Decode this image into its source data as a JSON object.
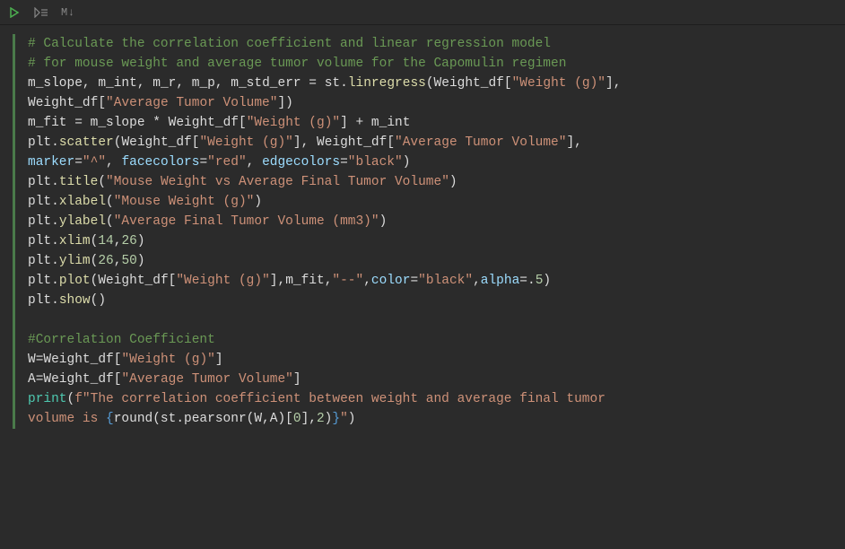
{
  "toolbar": {
    "run_icon": "run",
    "runall_icon": "run-all",
    "markdown_label": "M↓"
  },
  "code": {
    "lines": [
      [
        {
          "c": "tok-comment",
          "t": "# Calculate the correlation coefficient and linear regression model"
        }
      ],
      [
        {
          "c": "tok-comment",
          "t": "# for mouse weight and average tumor volume for the Capomulin regimen"
        }
      ],
      [
        {
          "c": "tok-ident",
          "t": "m_slope"
        },
        {
          "c": "tok-op",
          "t": ", "
        },
        {
          "c": "tok-ident",
          "t": "m_int"
        },
        {
          "c": "tok-op",
          "t": ", "
        },
        {
          "c": "tok-ident",
          "t": "m_r"
        },
        {
          "c": "tok-op",
          "t": ", "
        },
        {
          "c": "tok-ident",
          "t": "m_p"
        },
        {
          "c": "tok-op",
          "t": ", "
        },
        {
          "c": "tok-ident",
          "t": "m_std_err"
        },
        {
          "c": "tok-op",
          "t": " = "
        },
        {
          "c": "tok-ident",
          "t": "st"
        },
        {
          "c": "tok-op",
          "t": "."
        },
        {
          "c": "tok-func",
          "t": "linregress"
        },
        {
          "c": "tok-op",
          "t": "("
        },
        {
          "c": "tok-ident",
          "t": "Weight_df"
        },
        {
          "c": "tok-op",
          "t": "["
        },
        {
          "c": "tok-string",
          "t": "\"Weight (g)\""
        },
        {
          "c": "tok-op",
          "t": "], "
        }
      ],
      [
        {
          "c": "tok-ident",
          "t": "Weight_df"
        },
        {
          "c": "tok-op",
          "t": "["
        },
        {
          "c": "tok-string",
          "t": "\"Average Tumor Volume\""
        },
        {
          "c": "tok-op",
          "t": "])"
        }
      ],
      [
        {
          "c": "tok-ident",
          "t": "m_fit"
        },
        {
          "c": "tok-op",
          "t": " = "
        },
        {
          "c": "tok-ident",
          "t": "m_slope"
        },
        {
          "c": "tok-op",
          "t": " * "
        },
        {
          "c": "tok-ident",
          "t": "Weight_df"
        },
        {
          "c": "tok-op",
          "t": "["
        },
        {
          "c": "tok-string",
          "t": "\"Weight (g)\""
        },
        {
          "c": "tok-op",
          "t": "] + "
        },
        {
          "c": "tok-ident",
          "t": "m_int"
        }
      ],
      [
        {
          "c": "tok-ident",
          "t": "plt"
        },
        {
          "c": "tok-op",
          "t": "."
        },
        {
          "c": "tok-func",
          "t": "scatter"
        },
        {
          "c": "tok-op",
          "t": "("
        },
        {
          "c": "tok-ident",
          "t": "Weight_df"
        },
        {
          "c": "tok-op",
          "t": "["
        },
        {
          "c": "tok-string",
          "t": "\"Weight (g)\""
        },
        {
          "c": "tok-op",
          "t": "], "
        },
        {
          "c": "tok-ident",
          "t": "Weight_df"
        },
        {
          "c": "tok-op",
          "t": "["
        },
        {
          "c": "tok-string",
          "t": "\"Average Tumor Volume\""
        },
        {
          "c": "tok-op",
          "t": "], "
        }
      ],
      [
        {
          "c": "tok-kwarg",
          "t": "marker"
        },
        {
          "c": "tok-op",
          "t": "="
        },
        {
          "c": "tok-string",
          "t": "\"^\""
        },
        {
          "c": "tok-op",
          "t": ", "
        },
        {
          "c": "tok-kwarg",
          "t": "facecolors"
        },
        {
          "c": "tok-op",
          "t": "="
        },
        {
          "c": "tok-string",
          "t": "\"red\""
        },
        {
          "c": "tok-op",
          "t": ", "
        },
        {
          "c": "tok-kwarg",
          "t": "edgecolors"
        },
        {
          "c": "tok-op",
          "t": "="
        },
        {
          "c": "tok-string",
          "t": "\"black\""
        },
        {
          "c": "tok-op",
          "t": ")"
        }
      ],
      [
        {
          "c": "tok-ident",
          "t": "plt"
        },
        {
          "c": "tok-op",
          "t": "."
        },
        {
          "c": "tok-func",
          "t": "title"
        },
        {
          "c": "tok-op",
          "t": "("
        },
        {
          "c": "tok-string",
          "t": "\"Mouse Weight vs Average Final Tumor Volume\""
        },
        {
          "c": "tok-op",
          "t": ")"
        }
      ],
      [
        {
          "c": "tok-ident",
          "t": "plt"
        },
        {
          "c": "tok-op",
          "t": "."
        },
        {
          "c": "tok-func",
          "t": "xlabel"
        },
        {
          "c": "tok-op",
          "t": "("
        },
        {
          "c": "tok-string",
          "t": "\"Mouse Weight (g)\""
        },
        {
          "c": "tok-op",
          "t": ")"
        }
      ],
      [
        {
          "c": "tok-ident",
          "t": "plt"
        },
        {
          "c": "tok-op",
          "t": "."
        },
        {
          "c": "tok-func",
          "t": "ylabel"
        },
        {
          "c": "tok-op",
          "t": "("
        },
        {
          "c": "tok-string",
          "t": "\"Average Final Tumor Volume (mm3)\""
        },
        {
          "c": "tok-op",
          "t": ")"
        }
      ],
      [
        {
          "c": "tok-ident",
          "t": "plt"
        },
        {
          "c": "tok-op",
          "t": "."
        },
        {
          "c": "tok-func",
          "t": "xlim"
        },
        {
          "c": "tok-op",
          "t": "("
        },
        {
          "c": "tok-num",
          "t": "14"
        },
        {
          "c": "tok-op",
          "t": ","
        },
        {
          "c": "tok-num",
          "t": "26"
        },
        {
          "c": "tok-op",
          "t": ")"
        }
      ],
      [
        {
          "c": "tok-ident",
          "t": "plt"
        },
        {
          "c": "tok-op",
          "t": "."
        },
        {
          "c": "tok-func",
          "t": "ylim"
        },
        {
          "c": "tok-op",
          "t": "("
        },
        {
          "c": "tok-num",
          "t": "26"
        },
        {
          "c": "tok-op",
          "t": ","
        },
        {
          "c": "tok-num",
          "t": "50"
        },
        {
          "c": "tok-op",
          "t": ")"
        }
      ],
      [
        {
          "c": "tok-ident",
          "t": "plt"
        },
        {
          "c": "tok-op",
          "t": "."
        },
        {
          "c": "tok-func",
          "t": "plot"
        },
        {
          "c": "tok-op",
          "t": "("
        },
        {
          "c": "tok-ident",
          "t": "Weight_df"
        },
        {
          "c": "tok-op",
          "t": "["
        },
        {
          "c": "tok-string",
          "t": "\"Weight (g)\""
        },
        {
          "c": "tok-op",
          "t": "],"
        },
        {
          "c": "tok-ident",
          "t": "m_fit"
        },
        {
          "c": "tok-op",
          "t": ","
        },
        {
          "c": "tok-string",
          "t": "\"--\""
        },
        {
          "c": "tok-op",
          "t": ","
        },
        {
          "c": "tok-kwarg",
          "t": "color"
        },
        {
          "c": "tok-op",
          "t": "="
        },
        {
          "c": "tok-string",
          "t": "\"black\""
        },
        {
          "c": "tok-op",
          "t": ","
        },
        {
          "c": "tok-kwarg",
          "t": "alpha"
        },
        {
          "c": "tok-op",
          "t": "=."
        },
        {
          "c": "tok-num",
          "t": "5"
        },
        {
          "c": "tok-op",
          "t": ")"
        }
      ],
      [
        {
          "c": "tok-ident",
          "t": "plt"
        },
        {
          "c": "tok-op",
          "t": "."
        },
        {
          "c": "tok-func",
          "t": "show"
        },
        {
          "c": "tok-op",
          "t": "()"
        }
      ],
      [
        {
          "c": "tok-ident",
          "t": " "
        }
      ],
      [
        {
          "c": "tok-comment",
          "t": "#Correlation Coefficient"
        }
      ],
      [
        {
          "c": "tok-ident",
          "t": "W"
        },
        {
          "c": "tok-op",
          "t": "="
        },
        {
          "c": "tok-ident",
          "t": "Weight_df"
        },
        {
          "c": "tok-op",
          "t": "["
        },
        {
          "c": "tok-string",
          "t": "\"Weight (g)\""
        },
        {
          "c": "tok-op",
          "t": "]"
        }
      ],
      [
        {
          "c": "tok-ident",
          "t": "A"
        },
        {
          "c": "tok-op",
          "t": "="
        },
        {
          "c": "tok-ident",
          "t": "Weight_df"
        },
        {
          "c": "tok-op",
          "t": "["
        },
        {
          "c": "tok-string",
          "t": "\"Average Tumor Volume\""
        },
        {
          "c": "tok-op",
          "t": "]"
        }
      ],
      [
        {
          "c": "tok-builtin",
          "t": "print"
        },
        {
          "c": "tok-op",
          "t": "("
        },
        {
          "c": "tok-fstr",
          "t": "f\"The correlation coefficient between weight and average final tumor "
        }
      ],
      [
        {
          "c": "tok-fstr",
          "t": "volume is "
        },
        {
          "c": "tok-fstr-brace",
          "t": "{"
        },
        {
          "c": "tok-fstr-inner",
          "t": "round(st.pearsonr(W,A)["
        },
        {
          "c": "tok-fstr-num",
          "t": "0"
        },
        {
          "c": "tok-fstr-inner",
          "t": "],"
        },
        {
          "c": "tok-fstr-num",
          "t": "2"
        },
        {
          "c": "tok-fstr-inner",
          "t": ")"
        },
        {
          "c": "tok-fstr-brace",
          "t": "}"
        },
        {
          "c": "tok-fstr",
          "t": "\""
        },
        {
          "c": "tok-op",
          "t": ")"
        }
      ]
    ]
  },
  "colors": {
    "background": "#2b2b2b",
    "cell_border": "#4a7a4a",
    "comment": "#6a9955",
    "identifier": "#dcdcdc",
    "function": "#dcdcaa",
    "builtin": "#4ec9b0",
    "string": "#ce9178",
    "kwarg": "#9cdcfe",
    "number": "#b5cea8",
    "fstr_brace": "#569cd6",
    "toolbar_icon": "#888888",
    "run_icon": "#4caf50"
  }
}
